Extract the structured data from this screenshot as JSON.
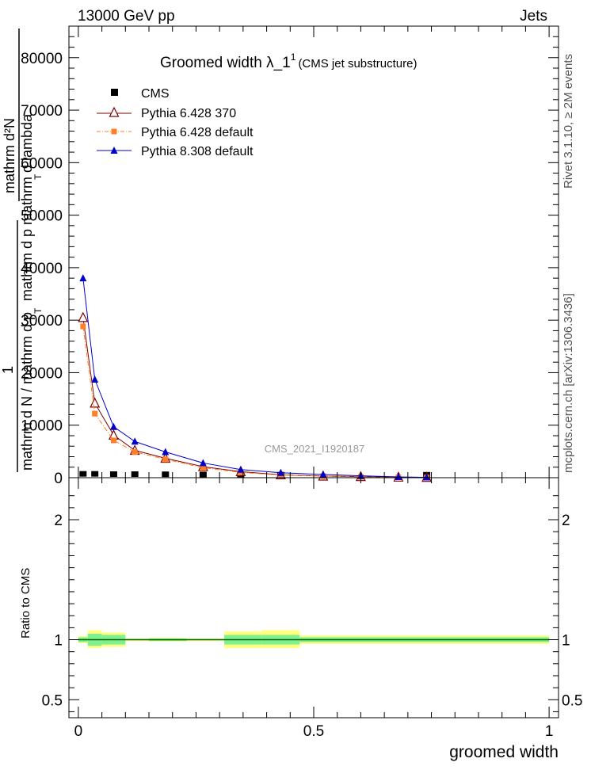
{
  "header": {
    "beam": "13000 GeV pp",
    "process": "Jets",
    "title_main": "Groomed width  λ_1",
    "title_sup": "1",
    "title_sub": "(CMS jet substructure)",
    "watermark": "CMS_2021_I1920187",
    "right_label_top": "Rivet 3.1.10, ≥ 2M events",
    "right_label_bottom": "mcplots.cern.ch [arXiv:1306.3436]"
  },
  "ylabel_main": {
    "numer_1": "mathrm d²N",
    "denom_1": "mathrm d p  mathrm d lambda",
    "denom_1_sub": "T",
    "prefactor_num": "1",
    "prefactor_den": "mathrm d N / mathrm d p",
    "prefactor_den_sub": "T"
  },
  "ylabel_ratio": "Ratio to CMS",
  "xlabel": "groomed width",
  "colors": {
    "cms": "#000000",
    "py6_370": "#800000",
    "py6_default": "#ff7f27",
    "py8": "#0000cc",
    "band_inner": "#80ef8f",
    "band_outer": "#ffff80",
    "ratio_line": "#006400"
  },
  "chart_data": [
    {
      "type": "line",
      "xlim": [
        -0.02,
        1.02
      ],
      "ylim": [
        0,
        86000
      ],
      "y_ticks": [
        0,
        10000,
        20000,
        30000,
        40000,
        50000,
        60000,
        70000,
        80000
      ],
      "y_tick_labels": [
        "0",
        "10000",
        "20000",
        "30000",
        "40000",
        "50000",
        "60000",
        "70000",
        "80000"
      ],
      "legend_position": "top-left",
      "series": [
        {
          "name": "CMS",
          "marker": "square",
          "x": [
            0.01,
            0.035,
            0.075,
            0.12,
            0.185,
            0.265,
            0.345,
            0.43,
            0.74
          ],
          "y": [
            200,
            200,
            150,
            150,
            120,
            80,
            60,
            40,
            30
          ]
        },
        {
          "name": "Pythia 6.428 370",
          "marker": "open-triangle",
          "x": [
            0.01,
            0.035,
            0.075,
            0.12,
            0.185,
            0.265,
            0.345,
            0.43,
            0.52,
            0.6,
            0.68,
            0.74
          ],
          "y": [
            30500,
            14200,
            8100,
            5200,
            3700,
            2100,
            1150,
            550,
            300,
            200,
            100,
            50
          ]
        },
        {
          "name": "Pythia 6.428 default",
          "marker": "filled-square",
          "x": [
            0.01,
            0.035,
            0.075,
            0.12,
            0.185,
            0.265,
            0.345,
            0.43,
            0.52,
            0.6,
            0.68,
            0.74
          ],
          "y": [
            28800,
            12200,
            7100,
            4900,
            3500,
            1900,
            1000,
            500,
            300,
            150,
            80,
            40
          ]
        },
        {
          "name": "Pythia 8.308 default",
          "marker": "filled-triangle",
          "x": [
            0.01,
            0.035,
            0.075,
            0.12,
            0.185,
            0.265,
            0.345,
            0.43,
            0.52,
            0.6,
            0.68,
            0.74
          ],
          "y": [
            38000,
            18700,
            9700,
            6900,
            4900,
            2800,
            1550,
            950,
            600,
            350,
            150,
            80
          ]
        }
      ]
    },
    {
      "type": "area",
      "xlim": [
        -0.02,
        1.02
      ],
      "ylim": [
        0.35,
        2.35
      ],
      "y_ticks": [
        0.5,
        1,
        2
      ],
      "y_tick_labels": [
        "0.5",
        "1",
        "2"
      ],
      "x_ticks": [
        0,
        0.5,
        1
      ],
      "x_tick_labels": [
        "0",
        "0.5",
        "1"
      ],
      "bins": [
        {
          "x0": 0.0,
          "x1": 0.02,
          "inner": [
            0.98,
            1.02
          ],
          "outer": [
            0.97,
            1.03
          ]
        },
        {
          "x0": 0.02,
          "x1": 0.05,
          "inner": [
            0.95,
            1.05
          ],
          "outer": [
            0.93,
            1.08
          ]
        },
        {
          "x0": 0.05,
          "x1": 0.1,
          "inner": [
            0.96,
            1.04
          ],
          "outer": [
            0.94,
            1.06
          ]
        },
        {
          "x0": 0.1,
          "x1": 0.15,
          "inner": [
            0.995,
            1.005
          ],
          "outer": [
            0.99,
            1.01
          ]
        },
        {
          "x0": 0.15,
          "x1": 0.23,
          "inner": [
            0.99,
            1.01
          ],
          "outer": [
            0.985,
            1.015
          ]
        },
        {
          "x0": 0.23,
          "x1": 0.31,
          "inner": [
            0.995,
            1.005
          ],
          "outer": [
            0.99,
            1.01
          ]
        },
        {
          "x0": 0.31,
          "x1": 0.39,
          "inner": [
            0.96,
            1.04
          ],
          "outer": [
            0.93,
            1.07
          ]
        },
        {
          "x0": 0.39,
          "x1": 0.47,
          "inner": [
            0.96,
            1.04
          ],
          "outer": [
            0.93,
            1.08
          ]
        },
        {
          "x0": 0.47,
          "x1": 1.0,
          "inner": [
            0.98,
            1.02
          ],
          "outer": [
            0.965,
            1.035
          ]
        }
      ],
      "reference_line": 1
    }
  ]
}
